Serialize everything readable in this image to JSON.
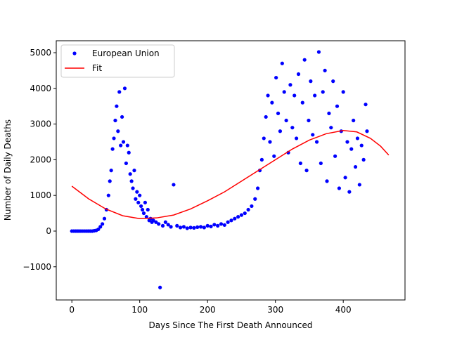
{
  "chart_data": {
    "type": "scatter-fit",
    "xlabel": "Days Since The First Death Announced",
    "ylabel": "Number of Daily Deaths",
    "xlim": [
      -23,
      491
    ],
    "ylim": [
      -1930,
      5335
    ],
    "xticks": [
      0,
      100,
      200,
      300,
      400
    ],
    "yticks": [
      {
        "value": -1000,
        "label": "−1000"
      },
      0,
      1000,
      2000,
      3000,
      4000,
      5000
    ],
    "legend": "upper left",
    "series": [
      {
        "name": "European Union",
        "color": "#0000ff",
        "kind": "points",
        "x": [
          0,
          3,
          6,
          9,
          12,
          15,
          18,
          21,
          24,
          27,
          30,
          33,
          36,
          39,
          42,
          45,
          48,
          51,
          54,
          56,
          58,
          60,
          62,
          64,
          66,
          68,
          70,
          72,
          74,
          76,
          78,
          80,
          82,
          84,
          86,
          88,
          90,
          92,
          94,
          96,
          98,
          100,
          102,
          104,
          106,
          108,
          110,
          112,
          114,
          116,
          118,
          120,
          124,
          128,
          130,
          134,
          138,
          142,
          146,
          150,
          155,
          160,
          165,
          170,
          175,
          180,
          185,
          190,
          195,
          200,
          205,
          210,
          215,
          220,
          225,
          230,
          235,
          240,
          245,
          250,
          255,
          260,
          265,
          270,
          274,
          277,
          280,
          283,
          286,
          289,
          292,
          295,
          298,
          301,
          304,
          307,
          310,
          313,
          316,
          319,
          322,
          325,
          328,
          331,
          334,
          337,
          340,
          343,
          346,
          349,
          352,
          355,
          358,
          361,
          364,
          367,
          370,
          373,
          376,
          379,
          382,
          385,
          388,
          391,
          394,
          397,
          400,
          403,
          406,
          409,
          412,
          415,
          418,
          421,
          424,
          427,
          430,
          433,
          435
        ],
        "values": [
          0,
          0,
          0,
          0,
          0,
          0,
          0,
          0,
          0,
          0,
          0,
          10,
          20,
          50,
          120,
          200,
          350,
          600,
          1000,
          1400,
          1700,
          2300,
          2600,
          3100,
          3500,
          2800,
          3900,
          2400,
          3200,
          2500,
          4000,
          1900,
          2400,
          2200,
          1600,
          1400,
          1200,
          1700,
          900,
          1100,
          800,
          1000,
          700,
          600,
          500,
          800,
          400,
          600,
          300,
          350,
          250,
          300,
          250,
          200,
          -1580,
          150,
          250,
          180,
          120,
          1300,
          150,
          100,
          120,
          80,
          100,
          90,
          110,
          120,
          100,
          150,
          130,
          180,
          150,
          200,
          170,
          250,
          300,
          350,
          400,
          450,
          500,
          600,
          700,
          900,
          1200,
          1700,
          2000,
          2600,
          3200,
          3800,
          2500,
          3600,
          2100,
          4300,
          3300,
          2800,
          4700,
          3900,
          3100,
          2200,
          4100,
          2900,
          3800,
          2600,
          4400,
          1900,
          3600,
          4800,
          1700,
          3100,
          4200,
          2700,
          3800,
          2500,
          5020,
          1900,
          3900,
          4500,
          1400,
          3300,
          2900,
          4200,
          2100,
          3500,
          1200,
          2800,
          3900,
          1500,
          2500,
          1100,
          2300,
          3100,
          1800,
          2600,
          1300,
          2400,
          2000,
          3550,
          2800
        ]
      },
      {
        "name": "Fit",
        "color": "#ff0000",
        "kind": "line",
        "x": [
          0,
          25,
          50,
          75,
          100,
          125,
          150,
          175,
          200,
          225,
          250,
          275,
          300,
          325,
          350,
          375,
          400,
          420,
          440,
          455,
          467
        ],
        "values": [
          1260,
          900,
          620,
          430,
          350,
          370,
          450,
          620,
          850,
          1100,
          1400,
          1700,
          2000,
          2300,
          2550,
          2730,
          2820,
          2780,
          2600,
          2380,
          2130
        ]
      }
    ]
  }
}
